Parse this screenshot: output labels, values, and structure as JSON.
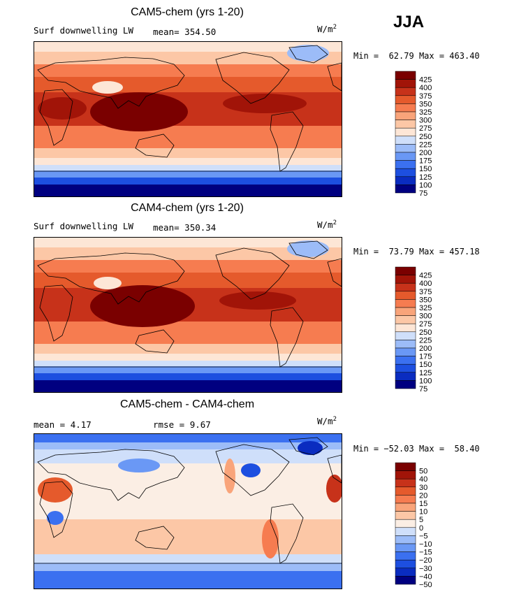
{
  "season": "JJA",
  "palette": {
    "full": [
      "#000080",
      "#0a2cc0",
      "#1d4fe0",
      "#3b70f0",
      "#6a98f5",
      "#9cbcf8",
      "#cfdffa",
      "#fde6d6",
      "#fcc7a6",
      "#f9a47a",
      "#f67c50",
      "#e55a2c",
      "#c7321a",
      "#a11408",
      "#7a0000"
    ],
    "diff": [
      "#000080",
      "#0a2cc0",
      "#1d4fe0",
      "#3b70f0",
      "#6a98f5",
      "#9cbcf8",
      "#cfdffa",
      "#fbeee4",
      "#fcc7a6",
      "#f9a47a",
      "#f67c50",
      "#e55a2c",
      "#c7321a",
      "#a11408",
      "#7a0000"
    ]
  },
  "chart_data": [
    {
      "type": "heatmap",
      "title": "CAM5-chem (yrs 1-20)",
      "variable": "Surf downwelling LW",
      "mean_label": "mean=",
      "mean": "354.50",
      "units": "W/m",
      "units_sup": "2",
      "min_label": "Min =",
      "min": "62.79",
      "max_label": "Max =",
      "max": "463.40",
      "colorbar": {
        "palette": "full",
        "levels": [
          "425",
          "400",
          "375",
          "350",
          "325",
          "300",
          "275",
          "250",
          "225",
          "200",
          "175",
          "150",
          "125",
          "100",
          "75"
        ]
      }
    },
    {
      "type": "heatmap",
      "title": "CAM4-chem (yrs 1-20)",
      "variable": "Surf downwelling LW",
      "mean_label": "mean=",
      "mean": "350.34",
      "units": "W/m",
      "units_sup": "2",
      "min_label": "Min =",
      "min": "73.79",
      "max_label": "Max =",
      "max": "457.18",
      "colorbar": {
        "palette": "full",
        "levels": [
          "425",
          "400",
          "375",
          "350",
          "325",
          "300",
          "275",
          "250",
          "225",
          "200",
          "175",
          "150",
          "125",
          "100",
          "75"
        ]
      }
    },
    {
      "type": "heatmap",
      "title": "CAM5-chem - CAM4-chem",
      "mean_label": "mean =",
      "mean": "4.17",
      "rmse_label": "rmse =",
      "rmse": "9.67",
      "units": "W/m",
      "units_sup": "2",
      "min_label": "Min =",
      "min": "−52.03",
      "max_label": "Max =",
      "max": "58.40",
      "colorbar": {
        "palette": "diff",
        "levels": [
          "50",
          "40",
          "30",
          "20",
          "15",
          "10",
          "5",
          "0",
          "−5",
          "−10",
          "−15",
          "−20",
          "−30",
          "−40",
          "−50"
        ]
      }
    }
  ]
}
